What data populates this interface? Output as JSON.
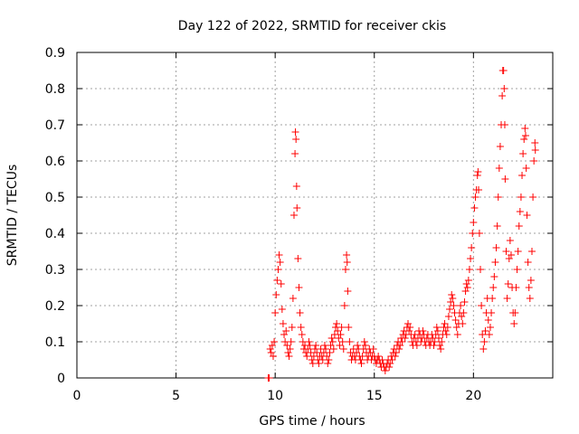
{
  "chart_data": {
    "type": "scatter",
    "title": "Day 122 of 2022, SRMTID for receiver ckis",
    "xlabel": "GPS time / hours",
    "ylabel": "SRMTID / TECUs",
    "xlim": [
      0,
      24
    ],
    "ylim": [
      0,
      0.9
    ],
    "xticks": [
      0,
      5,
      10,
      15,
      20
    ],
    "yticks": [
      0,
      0.1,
      0.2,
      0.3,
      0.4,
      0.5,
      0.6,
      0.7,
      0.8,
      0.9
    ],
    "xtick_labels": [
      "0",
      "5",
      "10",
      "15",
      "20"
    ],
    "ytick_labels": [
      "0",
      "0.1",
      "0.2",
      "0.3",
      "0.4",
      "0.5",
      "0.6",
      "0.7",
      "0.8",
      "0.9"
    ],
    "grid": true,
    "marker": "+",
    "series": [
      {
        "name": "SRMTID",
        "color": "#ff0000",
        "points": [
          [
            9.65,
            0.0
          ],
          [
            9.7,
            0.0
          ],
          [
            9.75,
            0.08
          ],
          [
            9.8,
            0.07
          ],
          [
            9.85,
            0.09
          ],
          [
            9.9,
            0.06
          ],
          [
            9.95,
            0.1
          ],
          [
            10.0,
            0.18
          ],
          [
            10.05,
            0.23
          ],
          [
            10.1,
            0.27
          ],
          [
            10.15,
            0.3
          ],
          [
            10.2,
            0.34
          ],
          [
            10.25,
            0.32
          ],
          [
            10.3,
            0.26
          ],
          [
            10.35,
            0.19
          ],
          [
            10.4,
            0.15
          ],
          [
            10.45,
            0.12
          ],
          [
            10.5,
            0.1
          ],
          [
            10.55,
            0.13
          ],
          [
            10.6,
            0.09
          ],
          [
            10.65,
            0.07
          ],
          [
            10.7,
            0.06
          ],
          [
            10.75,
            0.08
          ],
          [
            10.8,
            0.1
          ],
          [
            10.85,
            0.14
          ],
          [
            10.9,
            0.22
          ],
          [
            10.95,
            0.45
          ],
          [
            11.0,
            0.62
          ],
          [
            11.02,
            0.68
          ],
          [
            11.05,
            0.66
          ],
          [
            11.08,
            0.53
          ],
          [
            11.1,
            0.47
          ],
          [
            11.15,
            0.33
          ],
          [
            11.2,
            0.25
          ],
          [
            11.25,
            0.18
          ],
          [
            11.3,
            0.14
          ],
          [
            11.35,
            0.12
          ],
          [
            11.4,
            0.1
          ],
          [
            11.45,
            0.08
          ],
          [
            11.5,
            0.09
          ],
          [
            11.55,
            0.07
          ],
          [
            11.6,
            0.06
          ],
          [
            11.65,
            0.08
          ],
          [
            11.7,
            0.1
          ],
          [
            11.75,
            0.09
          ],
          [
            11.8,
            0.07
          ],
          [
            11.85,
            0.05
          ],
          [
            11.9,
            0.04
          ],
          [
            11.95,
            0.06
          ],
          [
            12.0,
            0.08
          ],
          [
            12.05,
            0.09
          ],
          [
            12.1,
            0.07
          ],
          [
            12.15,
            0.05
          ],
          [
            12.2,
            0.04
          ],
          [
            12.25,
            0.06
          ],
          [
            12.3,
            0.08
          ],
          [
            12.35,
            0.06
          ],
          [
            12.4,
            0.05
          ],
          [
            12.45,
            0.07
          ],
          [
            12.5,
            0.09
          ],
          [
            12.55,
            0.08
          ],
          [
            12.6,
            0.06
          ],
          [
            12.65,
            0.04
          ],
          [
            12.7,
            0.05
          ],
          [
            12.75,
            0.07
          ],
          [
            12.8,
            0.09
          ],
          [
            12.85,
            0.11
          ],
          [
            12.9,
            0.1
          ],
          [
            12.95,
            0.08
          ],
          [
            13.0,
            0.12
          ],
          [
            13.05,
            0.14
          ],
          [
            13.1,
            0.15
          ],
          [
            13.15,
            0.13
          ],
          [
            13.2,
            0.11
          ],
          [
            13.25,
            0.09
          ],
          [
            13.3,
            0.12
          ],
          [
            13.35,
            0.14
          ],
          [
            13.4,
            0.1
          ],
          [
            13.45,
            0.08
          ],
          [
            13.5,
            0.2
          ],
          [
            13.55,
            0.3
          ],
          [
            13.6,
            0.34
          ],
          [
            13.63,
            0.32
          ],
          [
            13.66,
            0.24
          ],
          [
            13.7,
            0.14
          ],
          [
            13.75,
            0.1
          ],
          [
            13.8,
            0.07
          ],
          [
            13.85,
            0.05
          ],
          [
            13.9,
            0.06
          ],
          [
            13.95,
            0.08
          ],
          [
            14.0,
            0.06
          ],
          [
            14.05,
            0.05
          ],
          [
            14.1,
            0.07
          ],
          [
            14.15,
            0.09
          ],
          [
            14.2,
            0.08
          ],
          [
            14.25,
            0.06
          ],
          [
            14.3,
            0.05
          ],
          [
            14.35,
            0.04
          ],
          [
            14.4,
            0.06
          ],
          [
            14.45,
            0.08
          ],
          [
            14.5,
            0.1
          ],
          [
            14.55,
            0.09
          ],
          [
            14.6,
            0.07
          ],
          [
            14.65,
            0.05
          ],
          [
            14.7,
            0.06
          ],
          [
            14.75,
            0.08
          ],
          [
            14.8,
            0.07
          ],
          [
            14.85,
            0.05
          ],
          [
            14.9,
            0.06
          ],
          [
            14.95,
            0.08
          ],
          [
            15.0,
            0.06
          ],
          [
            15.05,
            0.05
          ],
          [
            15.1,
            0.04
          ],
          [
            15.15,
            0.05
          ],
          [
            15.2,
            0.06
          ],
          [
            15.25,
            0.05
          ],
          [
            15.3,
            0.04
          ],
          [
            15.35,
            0.03
          ],
          [
            15.4,
            0.05
          ],
          [
            15.45,
            0.04
          ],
          [
            15.5,
            0.03
          ],
          [
            15.55,
            0.02
          ],
          [
            15.6,
            0.03
          ],
          [
            15.65,
            0.04
          ],
          [
            15.7,
            0.05
          ],
          [
            15.75,
            0.03
          ],
          [
            15.8,
            0.04
          ],
          [
            15.85,
            0.06
          ],
          [
            15.9,
            0.05
          ],
          [
            15.95,
            0.07
          ],
          [
            16.0,
            0.08
          ],
          [
            16.05,
            0.06
          ],
          [
            16.1,
            0.07
          ],
          [
            16.15,
            0.09
          ],
          [
            16.2,
            0.1
          ],
          [
            16.25,
            0.08
          ],
          [
            16.3,
            0.09
          ],
          [
            16.35,
            0.11
          ],
          [
            16.4,
            0.1
          ],
          [
            16.45,
            0.12
          ],
          [
            16.5,
            0.13
          ],
          [
            16.55,
            0.11
          ],
          [
            16.6,
            0.12
          ],
          [
            16.65,
            0.14
          ],
          [
            16.7,
            0.15
          ],
          [
            16.75,
            0.13
          ],
          [
            16.8,
            0.14
          ],
          [
            16.85,
            0.12
          ],
          [
            16.9,
            0.1
          ],
          [
            16.95,
            0.09
          ],
          [
            17.0,
            0.11
          ],
          [
            17.05,
            0.12
          ],
          [
            17.1,
            0.1
          ],
          [
            17.15,
            0.09
          ],
          [
            17.2,
            0.11
          ],
          [
            17.25,
            0.13
          ],
          [
            17.3,
            0.12
          ],
          [
            17.35,
            0.1
          ],
          [
            17.4,
            0.11
          ],
          [
            17.45,
            0.13
          ],
          [
            17.5,
            0.12
          ],
          [
            17.55,
            0.1
          ],
          [
            17.6,
            0.09
          ],
          [
            17.65,
            0.11
          ],
          [
            17.7,
            0.12
          ],
          [
            17.75,
            0.1
          ],
          [
            17.8,
            0.09
          ],
          [
            17.85,
            0.1
          ],
          [
            17.9,
            0.12
          ],
          [
            17.95,
            0.11
          ],
          [
            18.0,
            0.09
          ],
          [
            18.05,
            0.1
          ],
          [
            18.1,
            0.12
          ],
          [
            18.15,
            0.14
          ],
          [
            18.2,
            0.13
          ],
          [
            18.25,
            0.11
          ],
          [
            18.3,
            0.09
          ],
          [
            18.35,
            0.08
          ],
          [
            18.4,
            0.1
          ],
          [
            18.45,
            0.12
          ],
          [
            18.5,
            0.14
          ],
          [
            18.55,
            0.15
          ],
          [
            18.6,
            0.13
          ],
          [
            18.65,
            0.12
          ],
          [
            18.7,
            0.14
          ],
          [
            18.75,
            0.17
          ],
          [
            18.8,
            0.19
          ],
          [
            18.85,
            0.21
          ],
          [
            18.9,
            0.23
          ],
          [
            18.95,
            0.22
          ],
          [
            19.0,
            0.2
          ],
          [
            19.05,
            0.18
          ],
          [
            19.1,
            0.16
          ],
          [
            19.15,
            0.14
          ],
          [
            19.2,
            0.12
          ],
          [
            19.25,
            0.15
          ],
          [
            19.3,
            0.18
          ],
          [
            19.35,
            0.2
          ],
          [
            19.4,
            0.17
          ],
          [
            19.45,
            0.15
          ],
          [
            19.5,
            0.18
          ],
          [
            19.55,
            0.21
          ],
          [
            19.6,
            0.24
          ],
          [
            19.65,
            0.26
          ],
          [
            19.7,
            0.25
          ],
          [
            19.75,
            0.27
          ],
          [
            19.8,
            0.3
          ],
          [
            19.85,
            0.33
          ],
          [
            19.9,
            0.36
          ],
          [
            19.95,
            0.4
          ],
          [
            20.0,
            0.43
          ],
          [
            20.05,
            0.47
          ],
          [
            20.1,
            0.5
          ],
          [
            20.15,
            0.52
          ],
          [
            20.2,
            0.56
          ],
          [
            20.23,
            0.57
          ],
          [
            20.26,
            0.52
          ],
          [
            20.3,
            0.4
          ],
          [
            20.35,
            0.3
          ],
          [
            20.4,
            0.2
          ],
          [
            20.45,
            0.12
          ],
          [
            20.5,
            0.08
          ],
          [
            20.55,
            0.1
          ],
          [
            20.6,
            0.13
          ],
          [
            20.65,
            0.18
          ],
          [
            20.7,
            0.22
          ],
          [
            20.75,
            0.16
          ],
          [
            20.8,
            0.12
          ],
          [
            20.85,
            0.14
          ],
          [
            20.9,
            0.18
          ],
          [
            20.95,
            0.22
          ],
          [
            21.0,
            0.25
          ],
          [
            21.05,
            0.28
          ],
          [
            21.1,
            0.32
          ],
          [
            21.15,
            0.36
          ],
          [
            21.2,
            0.42
          ],
          [
            21.25,
            0.5
          ],
          [
            21.3,
            0.58
          ],
          [
            21.35,
            0.64
          ],
          [
            21.4,
            0.7
          ],
          [
            21.45,
            0.78
          ],
          [
            21.48,
            0.85
          ],
          [
            21.52,
            0.85
          ],
          [
            21.55,
            0.8
          ],
          [
            21.58,
            0.7
          ],
          [
            21.6,
            0.55
          ],
          [
            21.65,
            0.35
          ],
          [
            21.7,
            0.22
          ],
          [
            21.75,
            0.26
          ],
          [
            21.8,
            0.33
          ],
          [
            21.85,
            0.38
          ],
          [
            21.9,
            0.34
          ],
          [
            21.95,
            0.25
          ],
          [
            22.0,
            0.18
          ],
          [
            22.05,
            0.15
          ],
          [
            22.1,
            0.18
          ],
          [
            22.15,
            0.25
          ],
          [
            22.2,
            0.3
          ],
          [
            22.25,
            0.35
          ],
          [
            22.3,
            0.42
          ],
          [
            22.35,
            0.46
          ],
          [
            22.4,
            0.5
          ],
          [
            22.45,
            0.56
          ],
          [
            22.5,
            0.62
          ],
          [
            22.55,
            0.66
          ],
          [
            22.6,
            0.69
          ],
          [
            22.63,
            0.67
          ],
          [
            22.66,
            0.58
          ],
          [
            22.7,
            0.45
          ],
          [
            22.75,
            0.32
          ],
          [
            22.8,
            0.25
          ],
          [
            22.85,
            0.22
          ],
          [
            22.9,
            0.27
          ],
          [
            22.95,
            0.35
          ],
          [
            23.0,
            0.5
          ],
          [
            23.05,
            0.6
          ],
          [
            23.1,
            0.65
          ],
          [
            23.12,
            0.63
          ]
        ]
      }
    ]
  }
}
